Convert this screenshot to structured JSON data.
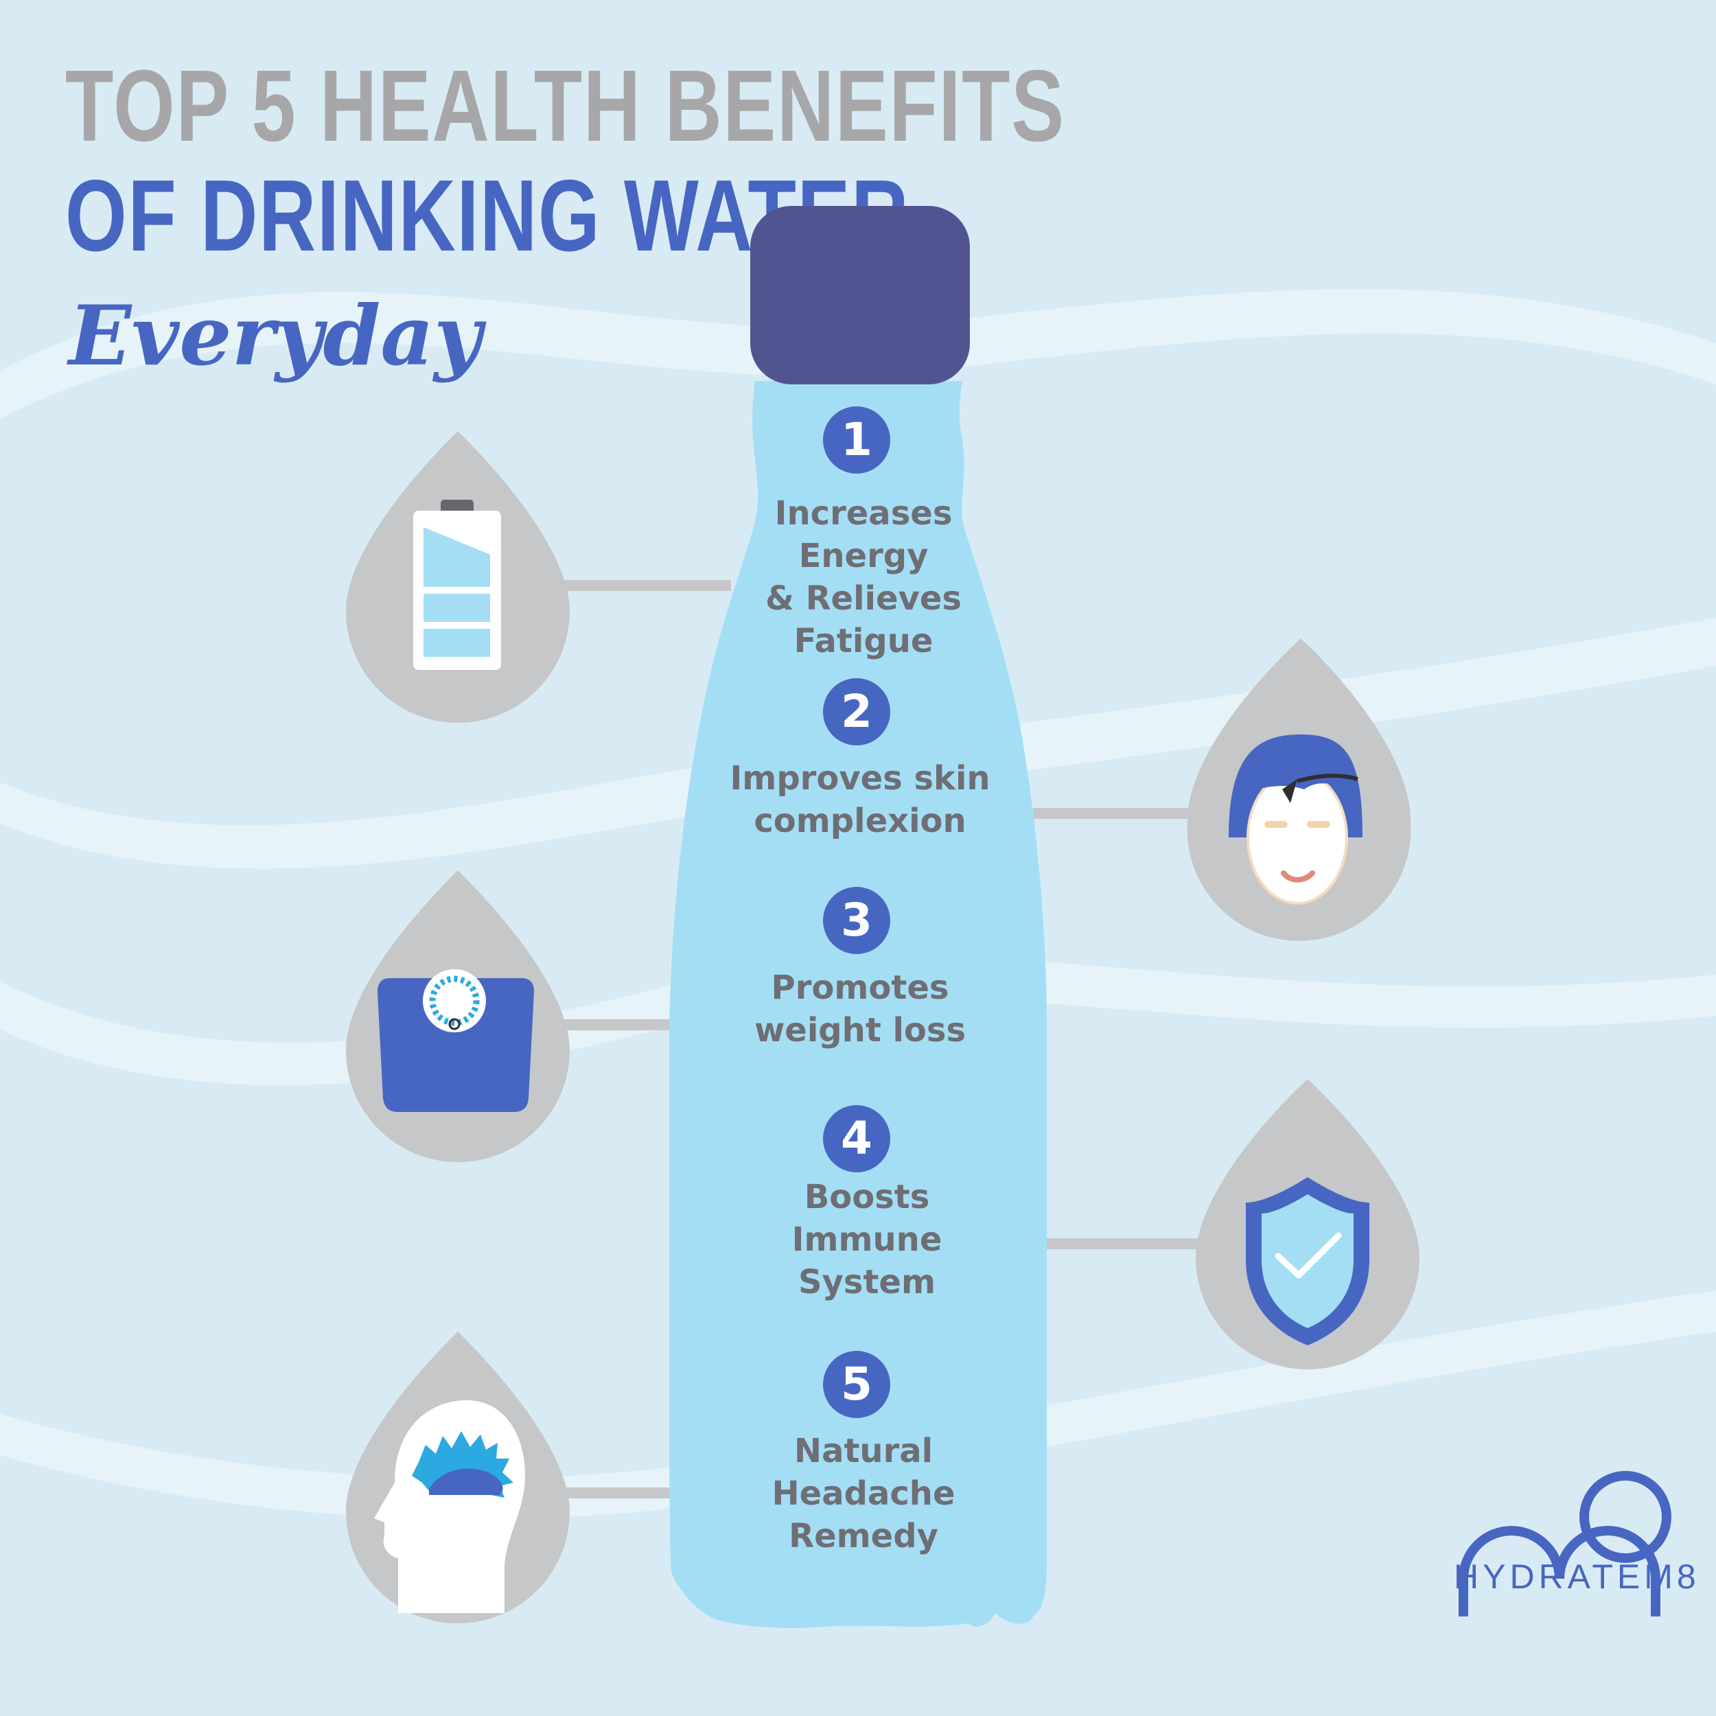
{
  "title": {
    "line1": "TOP 5 HEALTH BENEFITS",
    "line2": "OF DRINKING WATER",
    "line3": "Everyday"
  },
  "colors": {
    "background": "#d8ebf4",
    "wave": "#e6f3f9",
    "title_gray": "#a7a7a9",
    "accent_blue": "#4766c2",
    "cap": "#505592",
    "bottle": "#a4def5",
    "drop_gray": "#c6c7c9",
    "connector": "#c6c7c9",
    "text_gray": "#6e6e74"
  },
  "benefits": [
    {
      "number": "1",
      "label": "Increases\nEnergy\n& Relieves\nFatigue",
      "icon": "battery-icon"
    },
    {
      "number": "2",
      "label": "Improves skin\ncomplexion",
      "icon": "face-mask-icon"
    },
    {
      "number": "3",
      "label": "Promotes\nweight loss",
      "icon": "weight-scale-icon"
    },
    {
      "number": "4",
      "label": "Boosts\nImmune\nSystem",
      "icon": "shield-check-icon"
    },
    {
      "number": "5",
      "label": "Natural\nHeadache\nRemedy",
      "icon": "headache-head-icon"
    }
  ],
  "brand": {
    "name": "HYDRATEM8",
    "logo_icon": "hydratem8-logo-icon"
  }
}
